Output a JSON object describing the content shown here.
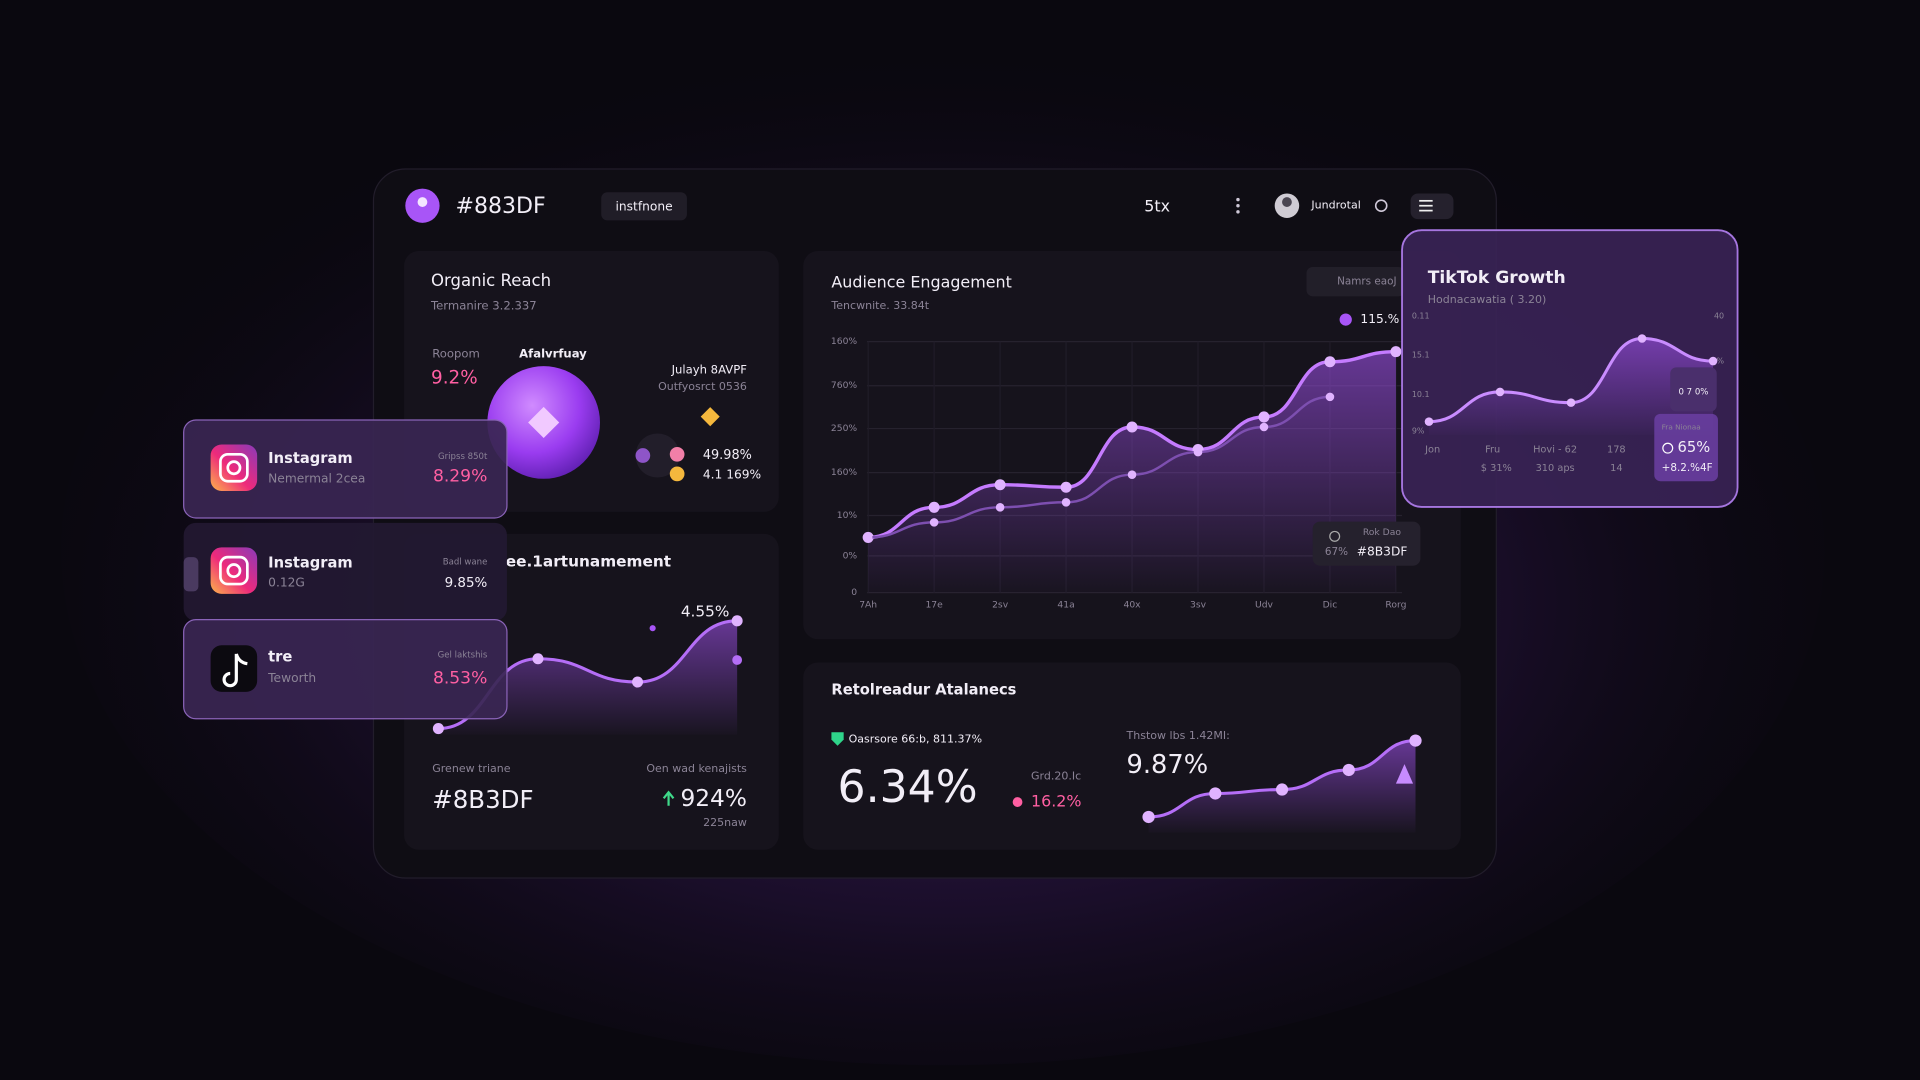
{
  "header": {
    "brand": "#883DF",
    "chip": "instfnone",
    "tab": "5tx",
    "user": "Jundrotal"
  },
  "organic_reach": {
    "title": "Organic Reach",
    "subtitle": "Termanire 3.2.337",
    "metric_label": "Roopom",
    "metric_value": "9.2%",
    "orb_label": "Afalvrfuay",
    "side_title": "Julayh 8AVPF",
    "side_subtitle": "Outfyosrct 0536",
    "legend_1": "49.98%",
    "legend_2": "4.1 169%"
  },
  "growth_card": {
    "title": "ee.1artunamement",
    "peak_label": "4.55%",
    "trend": {
      "values": [
        5,
        62,
        43,
        93
      ],
      "ylim": [
        0,
        100
      ]
    },
    "left_label": "Grenew triane",
    "left_value": "#8B3DF",
    "right_label": "Oen wad kenajists",
    "right_value": "924%",
    "right_note": "225naw"
  },
  "audience_engagement": {
    "title": "Audience Engagement",
    "subtitle": "Tencwnite. 33.84t",
    "button": "Namrs eaoJ",
    "legend": "115.%",
    "y_labels": [
      "160%",
      "760%",
      "250%",
      "160%",
      "10%",
      "0%",
      "0"
    ],
    "x_labels": [
      "7Ah",
      "17e",
      "2sv",
      "41a",
      "40x",
      "3sv",
      "Udv",
      "Dic",
      "Rorg"
    ],
    "ylim": [
      0,
      100
    ],
    "series": [
      {
        "color": "#c57bff",
        "values": [
          22,
          34,
          43,
          42,
          66,
          57,
          70,
          92,
          96
        ]
      },
      {
        "color": "#7d4fb0",
        "values": [
          22,
          28,
          34,
          36,
          47,
          56,
          66,
          78,
          null
        ]
      }
    ],
    "tooltip": {
      "title": "Rok Dao",
      "value": "67%",
      "code": "#8B3DF"
    }
  },
  "retention": {
    "title": "Retolreadur Atalanecs",
    "status": "Oasrsore 66:b, 811.37%",
    "main_value": "6.34%",
    "delta_label": "Grd.20.Ic",
    "delta_value": "16.2%",
    "trend_label": "Thstow lbs 1.42MI:",
    "trend_value": "9.87%",
    "trend": {
      "values": [
        16,
        40,
        44,
        64,
        94
      ],
      "ylim": [
        0,
        100
      ]
    }
  },
  "tiktok": {
    "title": "TikTok Growth",
    "subtitle": "Hodnacawatia ( 3.20)",
    "y_labels": [
      "0.11",
      "15.1",
      "10.1",
      "9%"
    ],
    "y2_labels": [
      "40",
      "5%"
    ],
    "x_labels": [
      "Jon",
      "Fru",
      "Hovi - 62",
      "178"
    ],
    "x_sublabels": [
      "$ 31%",
      "310 aps",
      "14"
    ],
    "trend": {
      "values": [
        11,
        36,
        27,
        81,
        62
      ],
      "ylim": [
        0,
        100
      ]
    },
    "badge": "0 7 0%",
    "box_label": "Fra Nionaa",
    "box_value": "65%",
    "box_delta": "+8.2.%4F"
  },
  "accounts": [
    {
      "name": "Instagram",
      "sub": "Nemermal 2cea",
      "label": "Gripss 850t",
      "value": "8.29%"
    },
    {
      "name": "Instagram",
      "sub": "0.12G",
      "label": "Badl wane",
      "value": "9.85%"
    },
    {
      "name": "tre",
      "sub": "Teworth",
      "label": "Gel laktshis",
      "value": "8.53%"
    }
  ]
}
